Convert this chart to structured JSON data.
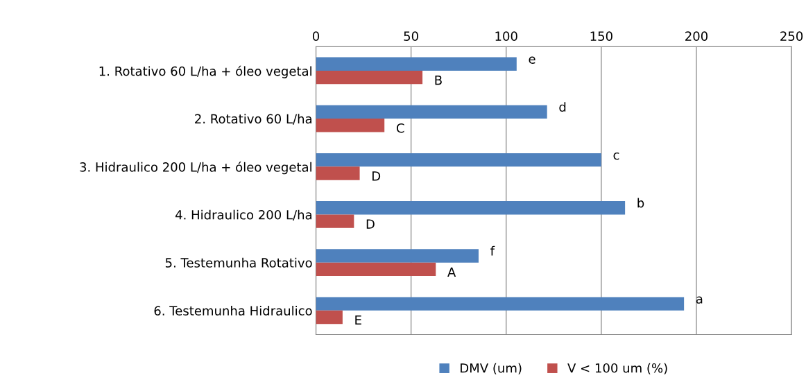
{
  "chart_data": {
    "type": "bar",
    "orientation": "horizontal",
    "categories": [
      "1. Rotativo 60 L/ha + óleo vegetal",
      "2. Rotativo 60 L/ha",
      "3. Hidraulico 200 L/ha + óleo vegetal",
      "4. Hidraulico 200 L/ha",
      "5. Testemunha Rotativo",
      "6. Testemunha Hidraulico"
    ],
    "series": [
      {
        "name": "DMV (um)",
        "color": "#4f81bd",
        "values": [
          105.5,
          121.5,
          150,
          162.5,
          85.5,
          193.5
        ],
        "value_labels": [
          "e",
          "d",
          "c",
          "b",
          "f",
          "a"
        ]
      },
      {
        "name": "V < 100 um (%)",
        "color": "#c0504d",
        "values": [
          56,
          36,
          23,
          20,
          63,
          14
        ],
        "value_labels": [
          "B",
          "C",
          "D",
          "D",
          "A",
          "E"
        ]
      }
    ],
    "xlim": [
      0,
      250
    ],
    "xticks": [
      0,
      50,
      100,
      150,
      200,
      250
    ],
    "grid": "x",
    "legend": "bottom"
  }
}
